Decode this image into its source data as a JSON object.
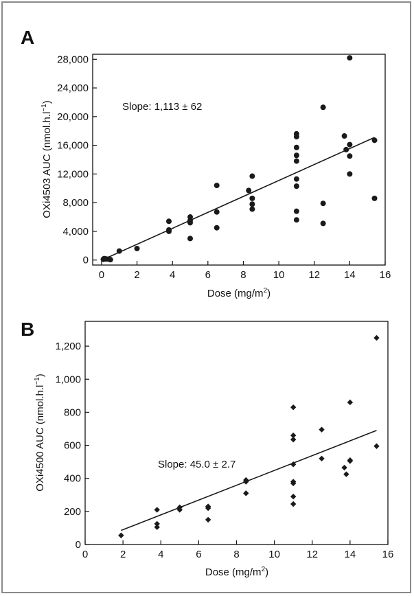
{
  "colors": {
    "marker": "#1a1a1a",
    "line": "#1a1a1a",
    "axis": "#111111",
    "border": "#8a8a8a"
  },
  "chart_data": [
    {
      "panel": "A",
      "type": "scatter",
      "xlabel": "Dose (mg/m",
      "xlabel_sup": "2",
      "xlabel_end": ")",
      "ylabel": "OXi4503 AUC (nmol.h.l",
      "ylabel_sup": "−1",
      "ylabel_end": ")",
      "xlim": [
        -0.5,
        16
      ],
      "ylim": [
        -700,
        28700
      ],
      "xticks": [
        0,
        2,
        4,
        6,
        8,
        10,
        12,
        14,
        16
      ],
      "yticks": [
        0,
        4000,
        8000,
        12000,
        16000,
        20000,
        24000,
        28000
      ],
      "yticklabels": [
        "0",
        "4,000",
        "8,000",
        "12,000",
        "16,000",
        "20,000",
        "24,000",
        "28,000"
      ],
      "annotation": "Slope: 1,113 ± 62",
      "grid": false,
      "fit_line": {
        "x": [
          0,
          15.4
        ],
        "y": [
          -30,
          17100
        ]
      },
      "points": [
        [
          0.1,
          100
        ],
        [
          0.15,
          200
        ],
        [
          0.25,
          150
        ],
        [
          0.4,
          120
        ],
        [
          0.5,
          50
        ],
        [
          1.0,
          1250
        ],
        [
          2.0,
          1600
        ],
        [
          3.8,
          4000
        ],
        [
          3.8,
          4200
        ],
        [
          3.8,
          5400
        ],
        [
          5.0,
          3000
        ],
        [
          5.0,
          5200
        ],
        [
          5.0,
          5500
        ],
        [
          5.0,
          6000
        ],
        [
          6.5,
          4500
        ],
        [
          6.5,
          6700
        ],
        [
          6.5,
          10400
        ],
        [
          8.3,
          9700
        ],
        [
          8.5,
          7100
        ],
        [
          8.5,
          7800
        ],
        [
          8.5,
          8600
        ],
        [
          8.5,
          11700
        ],
        [
          11.0,
          5600
        ],
        [
          11.0,
          6800
        ],
        [
          11.0,
          10300
        ],
        [
          11.0,
          11300
        ],
        [
          11.0,
          13800
        ],
        [
          11.0,
          14600
        ],
        [
          11.0,
          15700
        ],
        [
          11.0,
          17200
        ],
        [
          11.0,
          17600
        ],
        [
          12.5,
          5100
        ],
        [
          12.5,
          7900
        ],
        [
          12.5,
          21300
        ],
        [
          13.7,
          17300
        ],
        [
          13.8,
          15400
        ],
        [
          14.0,
          12000
        ],
        [
          14.0,
          14500
        ],
        [
          14.0,
          16100
        ],
        [
          14.0,
          28200
        ],
        [
          15.4,
          8600
        ],
        [
          15.4,
          16700
        ]
      ]
    },
    {
      "panel": "B",
      "type": "scatter",
      "xlabel": "Dose (mg/m",
      "xlabel_sup": "2",
      "xlabel_end": ")",
      "ylabel": "OXi4500 AUC (nmol.h.l",
      "ylabel_sup": "−1",
      "ylabel_end": ")",
      "xlim": [
        0,
        16
      ],
      "ylim": [
        0,
        1350
      ],
      "xticks": [
        0,
        2,
        4,
        6,
        8,
        10,
        12,
        14,
        16
      ],
      "yticks": [
        0,
        200,
        400,
        600,
        800,
        1000,
        1200
      ],
      "yticklabels": [
        "0",
        "200",
        "400",
        "600",
        "800",
        "1,000",
        "1,200"
      ],
      "annotation": "Slope: 45.0 ± 2.7",
      "grid": false,
      "fit_line": {
        "x": [
          1.9,
          15.4
        ],
        "y": [
          85,
          690
        ]
      },
      "points": [
        [
          1.9,
          55
        ],
        [
          3.8,
          105
        ],
        [
          3.8,
          125
        ],
        [
          3.8,
          210
        ],
        [
          5.0,
          210
        ],
        [
          5.0,
          225
        ],
        [
          6.5,
          150
        ],
        [
          6.5,
          220
        ],
        [
          6.5,
          230
        ],
        [
          8.5,
          310
        ],
        [
          8.5,
          380
        ],
        [
          8.5,
          390
        ],
        [
          11.0,
          245
        ],
        [
          11.0,
          290
        ],
        [
          11.0,
          370
        ],
        [
          11.0,
          380
        ],
        [
          11.0,
          485
        ],
        [
          11.0,
          635
        ],
        [
          11.0,
          660
        ],
        [
          11.0,
          830
        ],
        [
          12.5,
          520
        ],
        [
          12.5,
          695
        ],
        [
          13.7,
          465
        ],
        [
          13.8,
          425
        ],
        [
          14.0,
          505
        ],
        [
          14.0,
          510
        ],
        [
          14.0,
          860
        ],
        [
          15.4,
          595
        ],
        [
          15.4,
          1250
        ]
      ]
    }
  ]
}
